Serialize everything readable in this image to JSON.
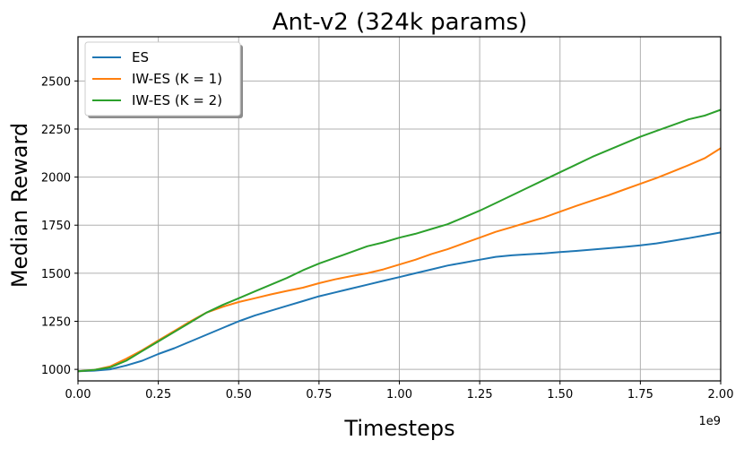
{
  "chart_data": {
    "type": "line",
    "title": "Ant-v2 (324k params)",
    "xlabel": "Timesteps",
    "ylabel": "Median Reward",
    "x_offset_label": "1e9",
    "xlim": [
      0,
      2.0
    ],
    "ylim": [
      940,
      2730
    ],
    "xticks": [
      0,
      0.25,
      0.5,
      0.75,
      1.0,
      1.25,
      1.5,
      1.75,
      2.0
    ],
    "xtick_labels": [
      "0.00",
      "0.25",
      "0.50",
      "0.75",
      "1.00",
      "1.25",
      "1.50",
      "1.75",
      "2.00"
    ],
    "yticks": [
      1000,
      1250,
      1500,
      1750,
      2000,
      2250,
      2500
    ],
    "ytick_labels": [
      "1000",
      "1250",
      "1500",
      "1750",
      "2000",
      "2250",
      "2500"
    ],
    "grid": true,
    "legend_position": "top-left",
    "series": [
      {
        "name": "ES",
        "color": "#1f77b4",
        "x": [
          0,
          0.05,
          0.1,
          0.15,
          0.2,
          0.25,
          0.3,
          0.35,
          0.4,
          0.45,
          0.5,
          0.55,
          0.6,
          0.65,
          0.7,
          0.75,
          0.8,
          0.85,
          0.9,
          0.95,
          1.0,
          1.05,
          1.1,
          1.15,
          1.2,
          1.25,
          1.3,
          1.35,
          1.4,
          1.45,
          1.5,
          1.55,
          1.6,
          1.65,
          1.7,
          1.75,
          1.8,
          1.85,
          1.9,
          1.95,
          2.0
        ],
        "y": [
          990,
          993,
          1000,
          1020,
          1045,
          1080,
          1110,
          1145,
          1180,
          1215,
          1250,
          1280,
          1305,
          1330,
          1355,
          1380,
          1400,
          1420,
          1440,
          1460,
          1480,
          1500,
          1520,
          1540,
          1555,
          1570,
          1585,
          1593,
          1598,
          1603,
          1610,
          1616,
          1623,
          1630,
          1637,
          1645,
          1655,
          1668,
          1682,
          1697,
          1712
        ]
      },
      {
        "name": "IW-ES (K = 1)",
        "color": "#ff7f0e",
        "x": [
          0,
          0.05,
          0.1,
          0.15,
          0.2,
          0.25,
          0.3,
          0.35,
          0.4,
          0.45,
          0.5,
          0.55,
          0.6,
          0.65,
          0.7,
          0.75,
          0.8,
          0.85,
          0.9,
          0.95,
          1.0,
          1.05,
          1.1,
          1.15,
          1.2,
          1.25,
          1.3,
          1.35,
          1.4,
          1.45,
          1.5,
          1.55,
          1.6,
          1.65,
          1.7,
          1.75,
          1.8,
          1.85,
          1.9,
          1.95,
          2.0
        ],
        "y": [
          990,
          997,
          1015,
          1055,
          1100,
          1150,
          1200,
          1250,
          1295,
          1325,
          1350,
          1370,
          1390,
          1408,
          1425,
          1448,
          1468,
          1485,
          1500,
          1520,
          1545,
          1570,
          1600,
          1625,
          1655,
          1685,
          1715,
          1740,
          1765,
          1790,
          1820,
          1850,
          1878,
          1905,
          1935,
          1965,
          1995,
          2028,
          2062,
          2098,
          2150
        ]
      },
      {
        "name": "IW-ES (K = 2)",
        "color": "#2ca02c",
        "x": [
          0,
          0.05,
          0.1,
          0.15,
          0.2,
          0.25,
          0.3,
          0.35,
          0.4,
          0.45,
          0.5,
          0.55,
          0.6,
          0.65,
          0.7,
          0.75,
          0.8,
          0.85,
          0.9,
          0.95,
          1.0,
          1.05,
          1.1,
          1.15,
          1.2,
          1.25,
          1.3,
          1.35,
          1.4,
          1.45,
          1.5,
          1.55,
          1.6,
          1.65,
          1.7,
          1.75,
          1.8,
          1.85,
          1.9,
          1.95,
          2.0
        ],
        "y": [
          990,
          997,
          1010,
          1045,
          1095,
          1145,
          1195,
          1245,
          1295,
          1335,
          1370,
          1405,
          1440,
          1475,
          1515,
          1550,
          1580,
          1610,
          1640,
          1660,
          1685,
          1705,
          1730,
          1755,
          1790,
          1825,
          1865,
          1905,
          1945,
          1985,
          2025,
          2065,
          2105,
          2140,
          2175,
          2210,
          2240,
          2270,
          2300,
          2320,
          2350
        ]
      }
    ]
  }
}
